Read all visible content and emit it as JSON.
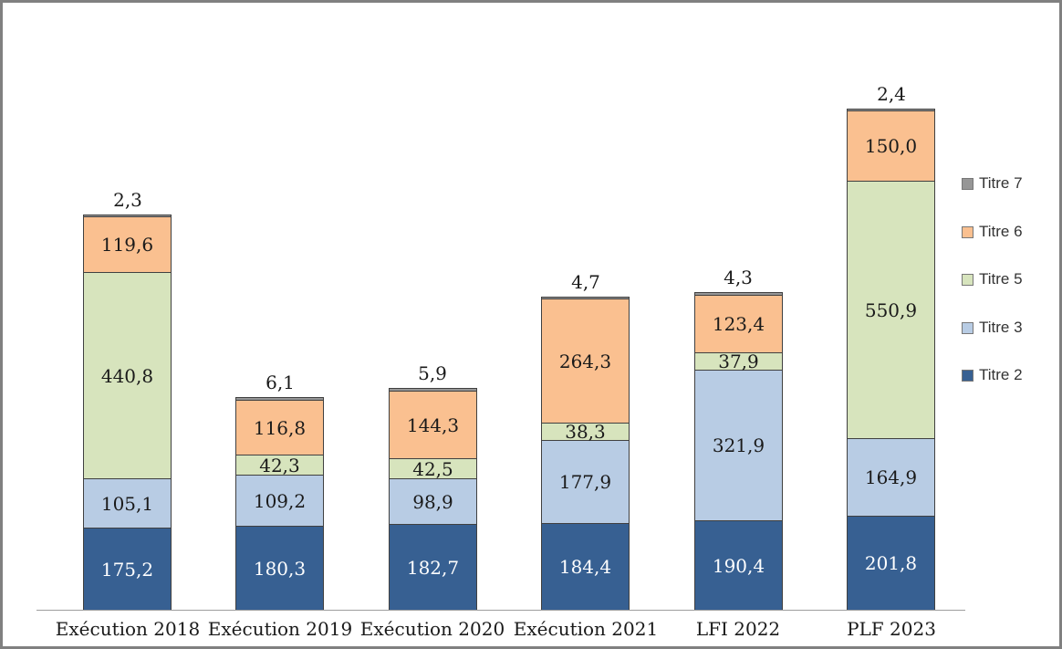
{
  "chart_data": {
    "type": "bar",
    "stacked": true,
    "orientation": "vertical",
    "title": "",
    "xlabel": "",
    "ylabel": "",
    "gridlines": false,
    "y_axis_visible": false,
    "decimal_separator": ",",
    "categories": [
      "Exécution 2018",
      "Exécution 2019",
      "Exécution 2020",
      "Exécution 2021",
      "LFI 2022",
      "PLF 2023"
    ],
    "series": [
      {
        "name": "Titre 2",
        "color": "#376092",
        "label_color": "#ffffff",
        "label_inside": true,
        "values": [
          175.2,
          180.3,
          182.7,
          184.4,
          190.4,
          201.8
        ],
        "labels": [
          "175,2",
          "180,3",
          "182,7",
          "184,4",
          "190,4",
          "201,8"
        ]
      },
      {
        "name": "Titre 3",
        "color": "#b8cce4",
        "label_color": "#1a1a1a",
        "label_inside": true,
        "values": [
          105.1,
          109.2,
          98.9,
          177.9,
          321.9,
          164.9
        ],
        "labels": [
          "105,1",
          "109,2",
          "98,9",
          "177,9",
          "321,9",
          "164,9"
        ]
      },
      {
        "name": "Titre 5",
        "color": "#d7e4bd",
        "label_color": "#1a1a1a",
        "label_inside": true,
        "values": [
          440.8,
          42.3,
          42.5,
          38.3,
          37.9,
          550.9
        ],
        "labels": [
          "440,8",
          "42,3",
          "42,5",
          "38,3",
          "37,9",
          "550,9"
        ]
      },
      {
        "name": "Titre 6",
        "color": "#fac090",
        "label_color": "#1a1a1a",
        "label_inside": true,
        "values": [
          119.6,
          116.8,
          144.3,
          264.3,
          123.4,
          150.0
        ],
        "labels": [
          "119,6",
          "116,8",
          "144,3",
          "264,3",
          "123,4",
          "150,0"
        ]
      },
      {
        "name": "Titre 7",
        "color": "#969696",
        "label_color": "#1a1a1a",
        "label_inside": false,
        "values": [
          2.3,
          6.1,
          5.9,
          4.7,
          4.3,
          2.4
        ],
        "labels": [
          "2,3",
          "6,1",
          "5,9",
          "4,7",
          "4,3",
          "2,4"
        ]
      }
    ],
    "legend": {
      "position": "right",
      "items": [
        {
          "label": "Titre 7",
          "color": "#969696"
        },
        {
          "label": "Titre 6",
          "color": "#fac090"
        },
        {
          "label": "Titre 5",
          "color": "#d7e4bd"
        },
        {
          "label": "Titre 3",
          "color": "#b8cce4"
        },
        {
          "label": "Titre 2",
          "color": "#376092"
        }
      ]
    }
  },
  "colors": {
    "frame_border": "#808080",
    "axis_line": "#9e9e9e",
    "segment_border": "#404040"
  }
}
